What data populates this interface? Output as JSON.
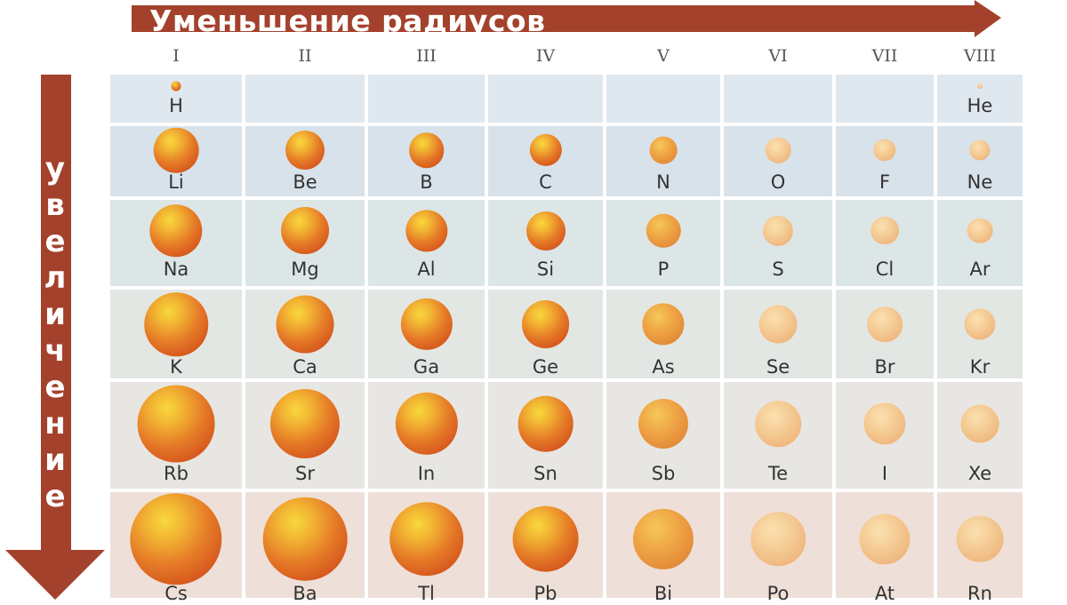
{
  "title_horizontal": "Уменьшение радиусов",
  "title_vertical": "увеличение",
  "groups": [
    "I",
    "II",
    "III",
    "IV",
    "V",
    "VI",
    "VII",
    "VIII"
  ],
  "colors": {
    "arrow": "#a4412c",
    "row_bands": [
      "#dfe7ef",
      "#d8e2eb",
      "#dde6e6",
      "#e3e7e3",
      "#e8e6e2",
      "#eee0d8"
    ],
    "ball_palette": [
      "#f7d23a",
      "#eb8a2b",
      "#d2551c",
      "#f9df9a",
      "#efb774"
    ]
  },
  "elements": [
    [
      {
        "symbol": "H",
        "size": 1
      },
      null,
      null,
      null,
      null,
      null,
      null,
      {
        "symbol": "He",
        "size": 0.3
      }
    ],
    [
      {
        "symbol": "Li",
        "size": 4.6
      },
      {
        "symbol": "Be",
        "size": 4.0
      },
      {
        "symbol": "B",
        "size": 3.6
      },
      {
        "symbol": "C",
        "size": 3.3
      },
      {
        "symbol": "N",
        "size": 2.8
      },
      {
        "symbol": "O",
        "size": 2.6
      },
      {
        "symbol": "F",
        "size": 2.3
      },
      {
        "symbol": "Ne",
        "size": 2.1
      }
    ],
    [
      {
        "symbol": "Na",
        "size": 5.4
      },
      {
        "symbol": "Mg",
        "size": 4.9
      },
      {
        "symbol": "Al",
        "size": 4.3
      },
      {
        "symbol": "Si",
        "size": 4.0
      },
      {
        "symbol": "P",
        "size": 3.5
      },
      {
        "symbol": "S",
        "size": 3.1
      },
      {
        "symbol": "Cl",
        "size": 2.9
      },
      {
        "symbol": "Ar",
        "size": 2.6
      }
    ],
    [
      {
        "symbol": "K",
        "size": 6.5
      },
      {
        "symbol": "Ca",
        "size": 5.9
      },
      {
        "symbol": "Ga",
        "size": 5.3
      },
      {
        "symbol": "Ge",
        "size": 4.9
      },
      {
        "symbol": "As",
        "size": 4.3
      },
      {
        "symbol": "Se",
        "size": 3.9
      },
      {
        "symbol": "Br",
        "size": 3.6
      },
      {
        "symbol": "Kr",
        "size": 3.2
      }
    ],
    [
      {
        "symbol": "Rb",
        "size": 7.9
      },
      {
        "symbol": "Sr",
        "size": 7.1
      },
      {
        "symbol": "In",
        "size": 6.4
      },
      {
        "symbol": "Sn",
        "size": 5.7
      },
      {
        "symbol": "Sb",
        "size": 5.1
      },
      {
        "symbol": "Te",
        "size": 4.7
      },
      {
        "symbol": "I",
        "size": 4.3
      },
      {
        "symbol": "Xe",
        "size": 3.9
      }
    ],
    [
      {
        "symbol": "Cs",
        "size": 9.4
      },
      {
        "symbol": "Ba",
        "size": 8.6
      },
      {
        "symbol": "Tl",
        "size": 7.6
      },
      {
        "symbol": "Pb",
        "size": 6.8
      },
      {
        "symbol": "Bi",
        "size": 6.2
      },
      {
        "symbol": "Po",
        "size": 5.6
      },
      {
        "symbol": "At",
        "size": 5.2
      },
      {
        "symbol": "Rn",
        "size": 4.8
      }
    ]
  ]
}
